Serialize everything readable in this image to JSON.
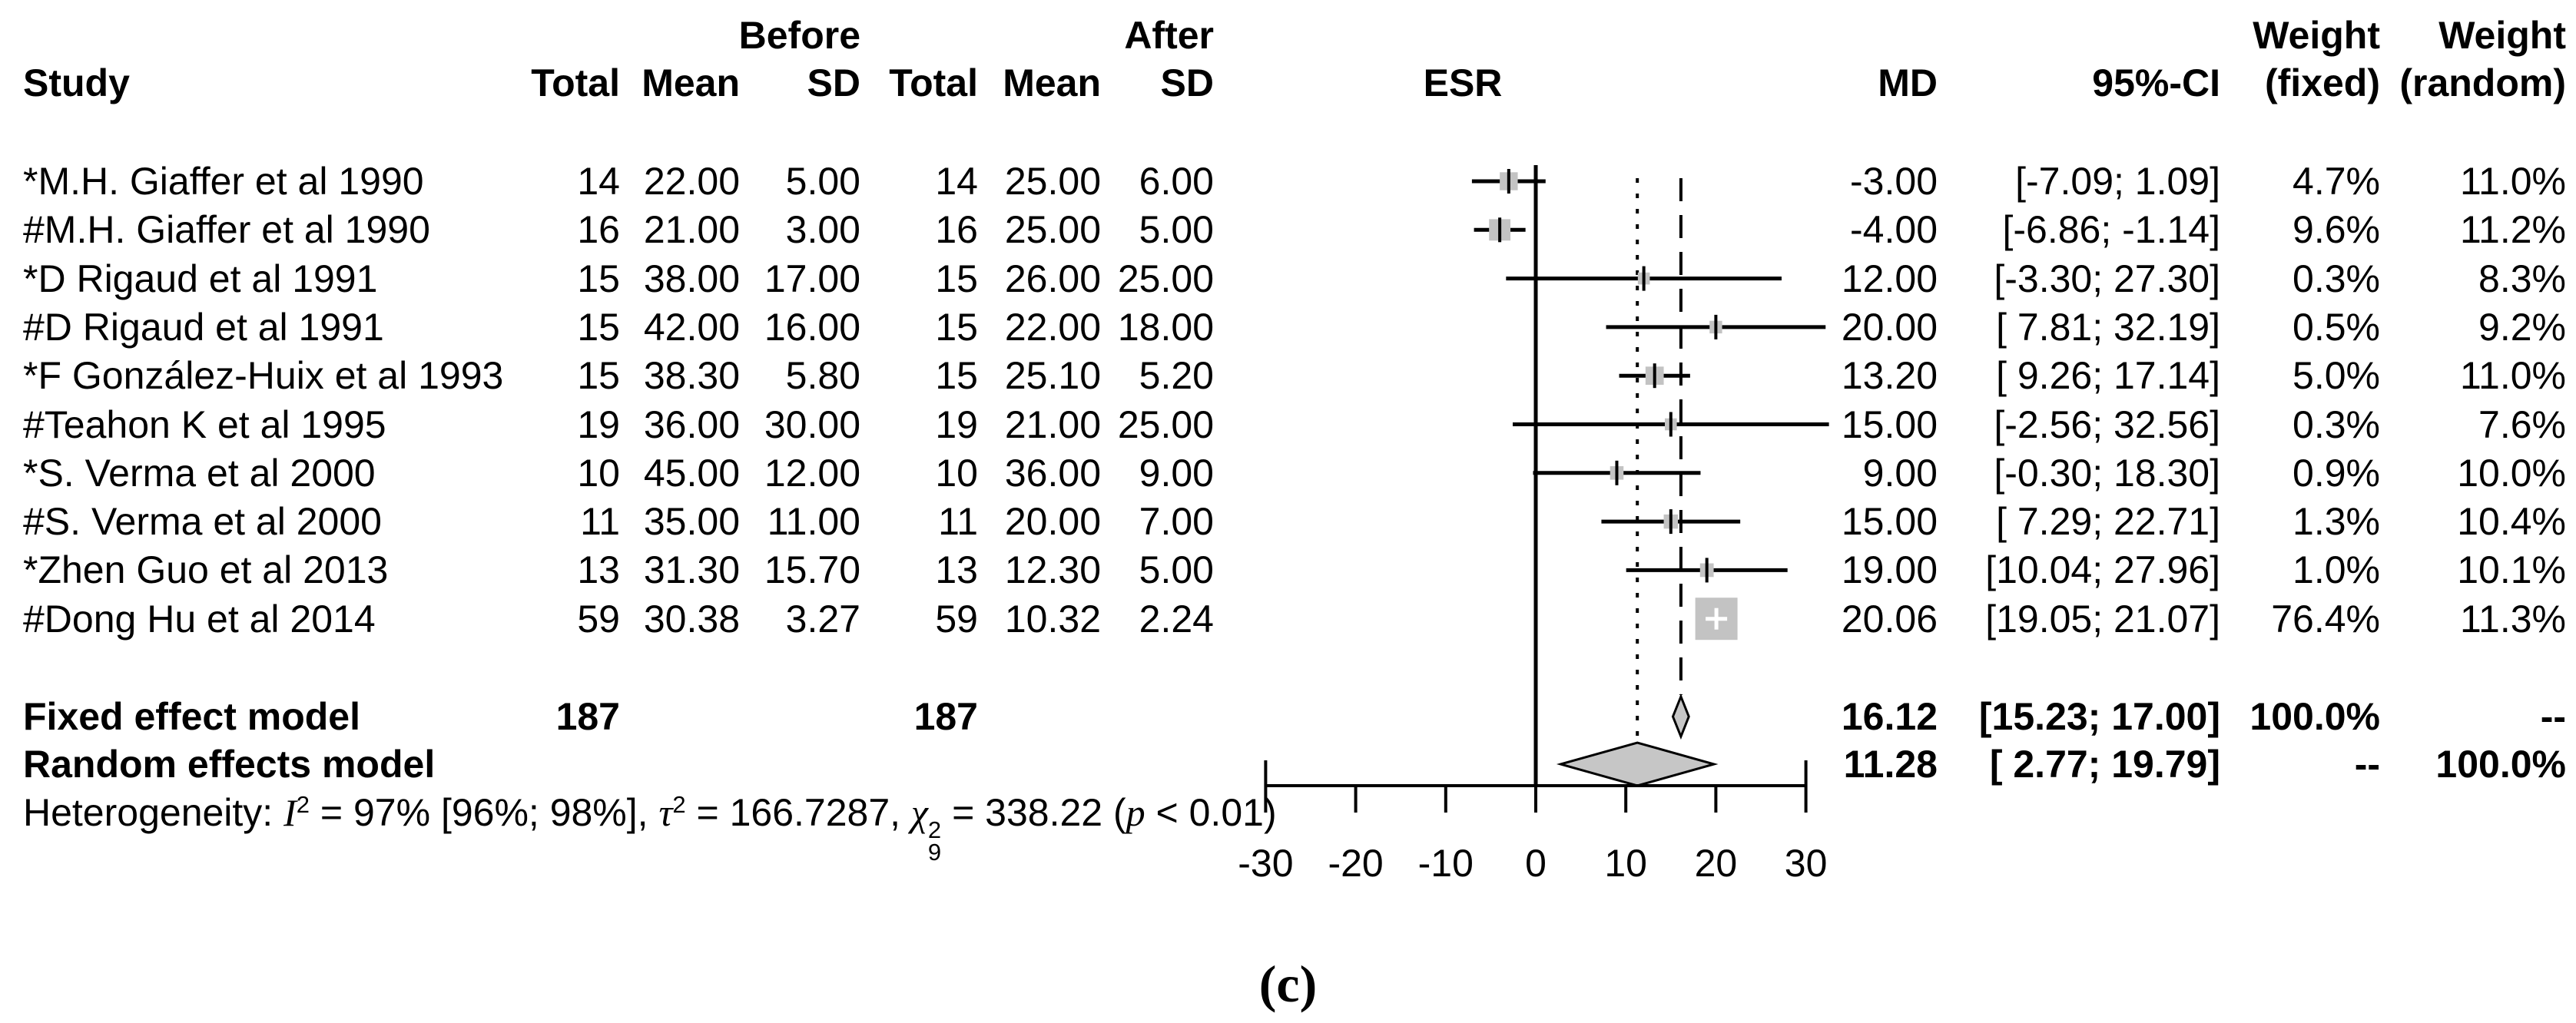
{
  "header": {
    "group_before": "Before",
    "group_after": "After",
    "col_study": "Study",
    "col_total": "Total",
    "col_mean": "Mean",
    "col_sd": "SD",
    "col_esr": "ESR",
    "col_md": "MD",
    "col_ci": "95%-CI",
    "weight_label": "Weight",
    "weight_fixed": "(fixed)",
    "weight_random": "(random)"
  },
  "chart_data": {
    "type": "forest",
    "effect_measure": "MD",
    "center_label": "ESR",
    "xlim": [
      -30,
      30
    ],
    "axis_ticks": [
      -30,
      -20,
      -10,
      0,
      10,
      20,
      30
    ],
    "axis_tick_labels": [
      "-30",
      "-20",
      "-10",
      "0",
      "10",
      "20",
      "30"
    ],
    "zero_line": 0,
    "fixed_line": 16.12,
    "random_line": 11.28,
    "studies": [
      {
        "name": "*M.H. Giaffer et al 1990",
        "total_before": "14",
        "mean_before": "22.00",
        "sd_before": "5.00",
        "total_after": "14",
        "mean_after": "25.00",
        "sd_after": "6.00",
        "md": -3.0,
        "ci_low": -7.09,
        "ci_high": 1.09,
        "md_label": "-3.00",
        "ci_label": "[-7.09; 1.09]",
        "weight_fixed": 4.7,
        "weight_random": 11.0,
        "weight_fixed_label": "4.7%",
        "weight_random_label": "11.0%"
      },
      {
        "name": "#M.H. Giaffer et al 1990",
        "total_before": "16",
        "mean_before": "21.00",
        "sd_before": "3.00",
        "total_after": "16",
        "mean_after": "25.00",
        "sd_after": "5.00",
        "md": -4.0,
        "ci_low": -6.86,
        "ci_high": -1.14,
        "md_label": "-4.00",
        "ci_label": "[-6.86; -1.14]",
        "weight_fixed": 9.6,
        "weight_random": 11.2,
        "weight_fixed_label": "9.6%",
        "weight_random_label": "11.2%"
      },
      {
        "name": "*D Rigaud et al 1991",
        "total_before": "15",
        "mean_before": "38.00",
        "sd_before": "17.00",
        "total_after": "15",
        "mean_after": "26.00",
        "sd_after": "25.00",
        "md": 12.0,
        "ci_low": -3.3,
        "ci_high": 27.3,
        "md_label": "12.00",
        "ci_label": "[-3.30; 27.30]",
        "weight_fixed": 0.3,
        "weight_random": 8.3,
        "weight_fixed_label": "0.3%",
        "weight_random_label": "8.3%"
      },
      {
        "name": "#D Rigaud et al 1991",
        "total_before": "15",
        "mean_before": "42.00",
        "sd_before": "16.00",
        "total_after": "15",
        "mean_after": "22.00",
        "sd_after": "18.00",
        "md": 20.0,
        "ci_low": 7.81,
        "ci_high": 32.19,
        "md_label": "20.00",
        "ci_label": "[ 7.81; 32.19]",
        "weight_fixed": 0.5,
        "weight_random": 9.2,
        "weight_fixed_label": "0.5%",
        "weight_random_label": "9.2%"
      },
      {
        "name": "*F González-Huix et al 1993",
        "total_before": "15",
        "mean_before": "38.30",
        "sd_before": "5.80",
        "total_after": "15",
        "mean_after": "25.10",
        "sd_after": "5.20",
        "md": 13.2,
        "ci_low": 9.26,
        "ci_high": 17.14,
        "md_label": "13.20",
        "ci_label": "[ 9.26; 17.14]",
        "weight_fixed": 5.0,
        "weight_random": 11.0,
        "weight_fixed_label": "5.0%",
        "weight_random_label": "11.0%"
      },
      {
        "name": "#Teahon K et al 1995",
        "total_before": "19",
        "mean_before": "36.00",
        "sd_before": "30.00",
        "total_after": "19",
        "mean_after": "21.00",
        "sd_after": "25.00",
        "md": 15.0,
        "ci_low": -2.56,
        "ci_high": 32.56,
        "md_label": "15.00",
        "ci_label": "[-2.56; 32.56]",
        "weight_fixed": 0.3,
        "weight_random": 7.6,
        "weight_fixed_label": "0.3%",
        "weight_random_label": "7.6%"
      },
      {
        "name": "*S. Verma et al 2000",
        "total_before": "10",
        "mean_before": "45.00",
        "sd_before": "12.00",
        "total_after": "10",
        "mean_after": "36.00",
        "sd_after": "9.00",
        "md": 9.0,
        "ci_low": -0.3,
        "ci_high": 18.3,
        "md_label": "9.00",
        "ci_label": "[-0.30; 18.30]",
        "weight_fixed": 0.9,
        "weight_random": 10.0,
        "weight_fixed_label": "0.9%",
        "weight_random_label": "10.0%"
      },
      {
        "name": "#S. Verma et al 2000",
        "total_before": "11",
        "mean_before": "35.00",
        "sd_before": "11.00",
        "total_after": "11",
        "mean_after": "20.00",
        "sd_after": "7.00",
        "md": 15.0,
        "ci_low": 7.29,
        "ci_high": 22.71,
        "md_label": "15.00",
        "ci_label": "[ 7.29; 22.71]",
        "weight_fixed": 1.3,
        "weight_random": 10.4,
        "weight_fixed_label": "1.3%",
        "weight_random_label": "10.4%"
      },
      {
        "name": "*Zhen Guo et al 2013",
        "total_before": "13",
        "mean_before": "31.30",
        "sd_before": "15.70",
        "total_after": "13",
        "mean_after": "12.30",
        "sd_after": "5.00",
        "md": 19.0,
        "ci_low": 10.04,
        "ci_high": 27.96,
        "md_label": "19.00",
        "ci_label": "[10.04; 27.96]",
        "weight_fixed": 1.0,
        "weight_random": 10.1,
        "weight_fixed_label": "1.0%",
        "weight_random_label": "10.1%"
      },
      {
        "name": "#Dong Hu et al 2014",
        "total_before": "59",
        "mean_before": "30.38",
        "sd_before": "3.27",
        "total_after": "59",
        "mean_after": "10.32",
        "sd_after": "2.24",
        "md": 20.06,
        "ci_low": 19.05,
        "ci_high": 21.07,
        "md_label": "20.06",
        "ci_label": "[19.05; 21.07]",
        "weight_fixed": 76.4,
        "weight_random": 11.3,
        "weight_fixed_label": "76.4%",
        "weight_random_label": "11.3%"
      }
    ],
    "fixed_model": {
      "label": "Fixed effect model",
      "total_before": "187",
      "total_after": "187",
      "md": 16.12,
      "ci_low": 15.23,
      "ci_high": 17.0,
      "md_label": "16.12",
      "ci_label": "[15.23; 17.00]",
      "weight_fixed_label": "100.0%",
      "weight_random_label": "--"
    },
    "random_model": {
      "label": "Random effects model",
      "md": 11.28,
      "ci_low": 2.77,
      "ci_high": 19.79,
      "md_label": "11.28",
      "ci_label": "[ 2.77; 19.79]",
      "weight_fixed_label": "--",
      "weight_random_label": "100.0%"
    },
    "heterogeneity_segments": [
      {
        "text": "Heterogeneity: "
      },
      {
        "text": "I",
        "italic": true
      },
      {
        "text": "2",
        "script": "sup"
      },
      {
        "text": " = 97% [96%; 98%], "
      },
      {
        "text": "τ",
        "italic": true
      },
      {
        "text": "2",
        "script": "sup"
      },
      {
        "text": " = 166.7287, "
      },
      {
        "text": "χ",
        "italic": true
      },
      {
        "script": "stack",
        "sup": "2",
        "sub": "9"
      },
      {
        "text": " = 338.22 ("
      },
      {
        "text": "p",
        "italic": true
      },
      {
        "text": " < 0.01)"
      }
    ]
  },
  "caption": "(c)",
  "colors": {
    "text": "#000000",
    "line": "#000000",
    "marker_fill": "#c3c3c3",
    "diamond_fill": "#c6c6c6",
    "big_marker_cross": "#ffffff"
  }
}
